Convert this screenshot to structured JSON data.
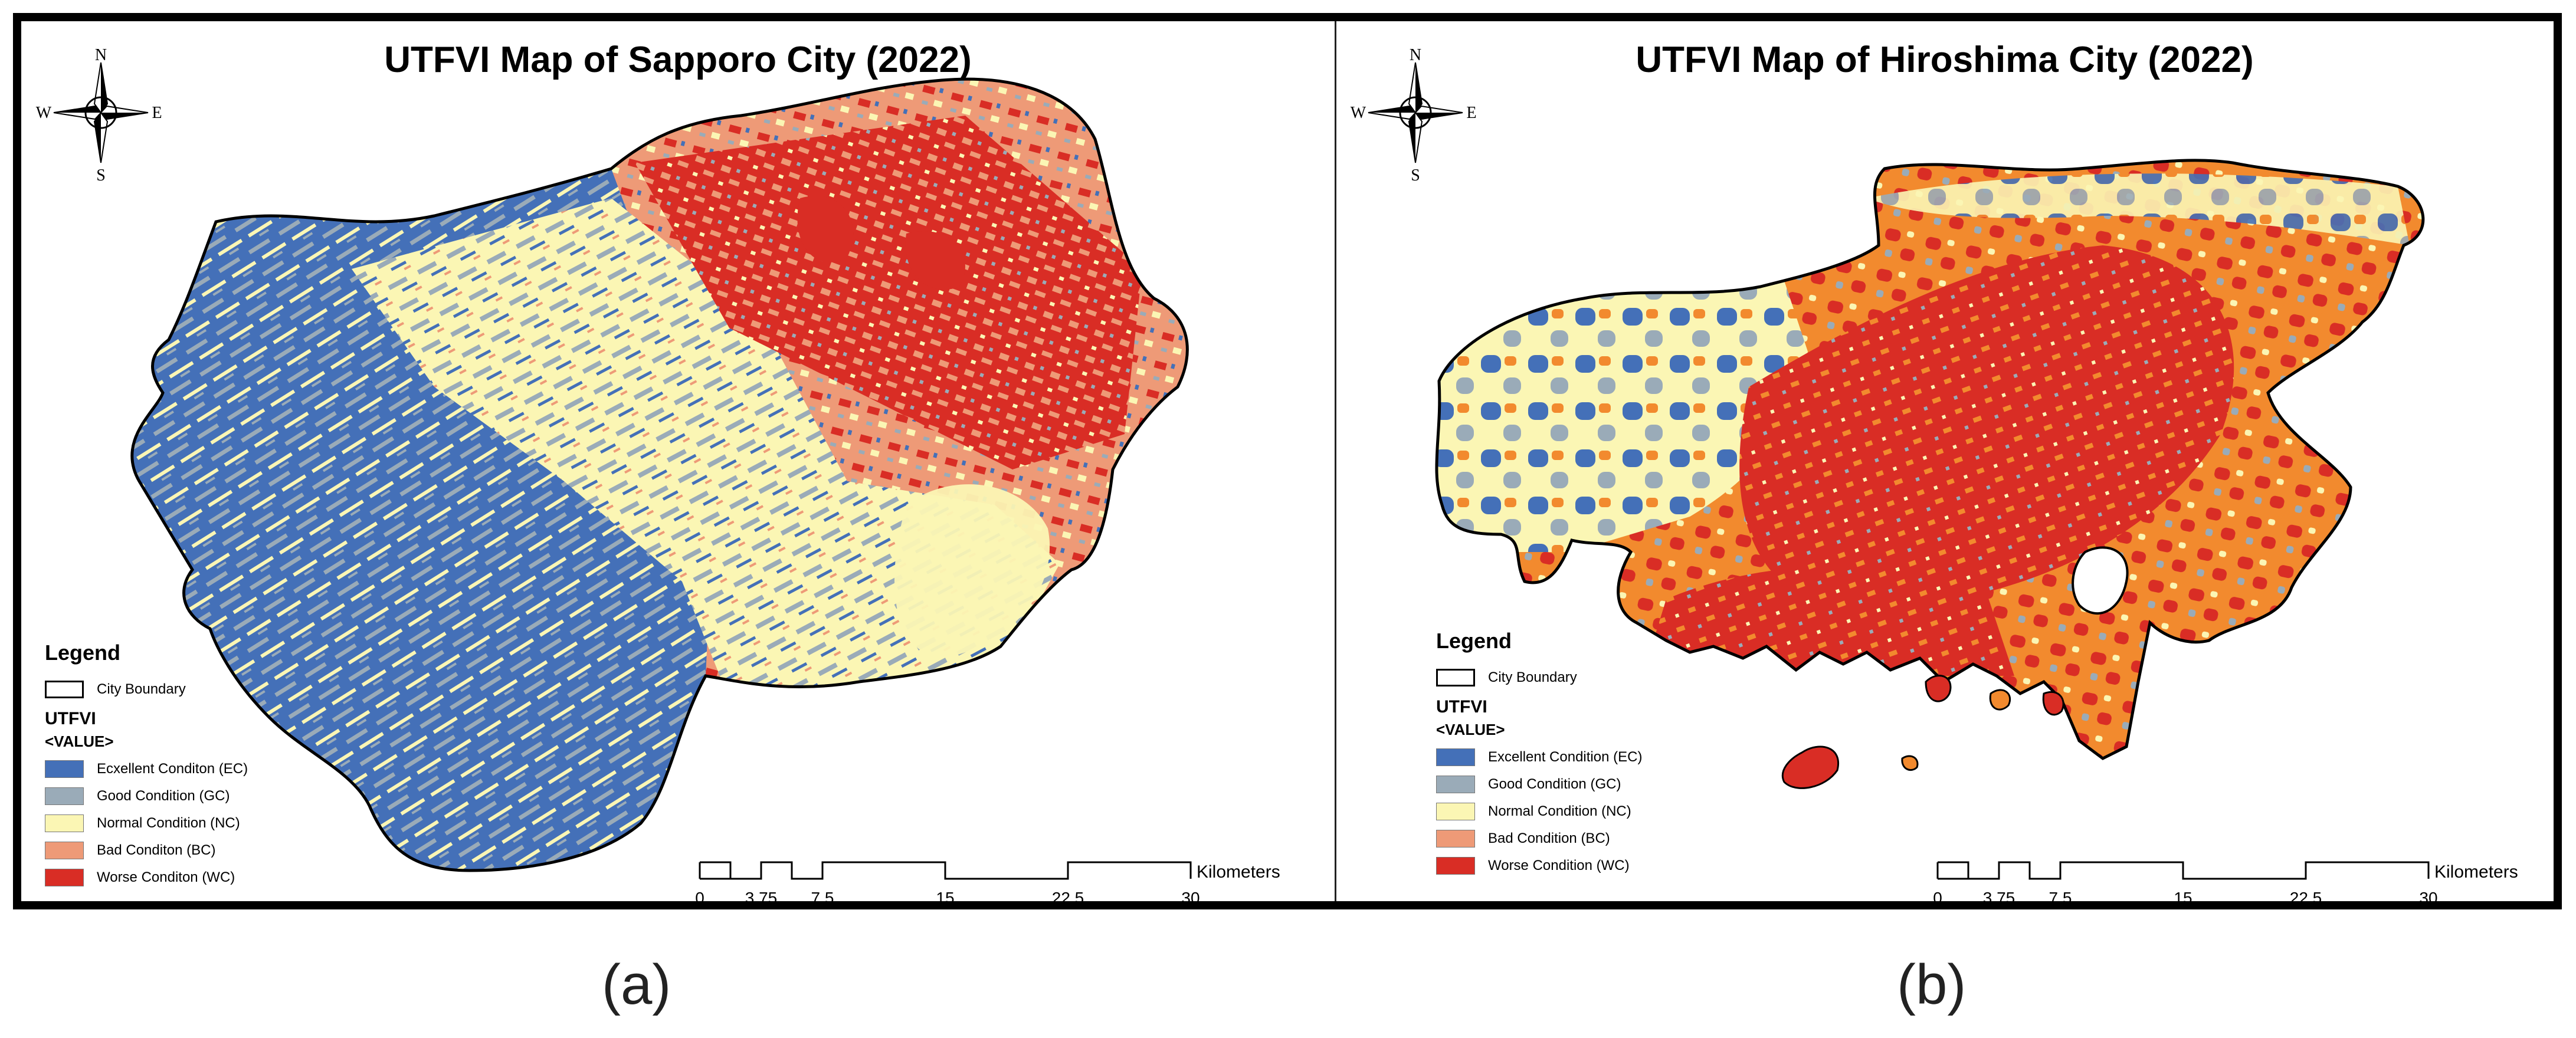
{
  "colors": {
    "ec": "#4470b8",
    "gc": "#9aabb8",
    "nc": "#fbf6b4",
    "bc": "#ee9a77",
    "wc": "#d92d25",
    "hiroshima_orange": "#f28a2e"
  },
  "panels": [
    {
      "title": "UTFVI Map of Sapporo City (2022)",
      "caption": "(a)",
      "compass": {
        "n": "N",
        "s": "S",
        "e": "E",
        "w": "W"
      },
      "legend": {
        "title": "Legend",
        "boundary_label": "City Boundary",
        "field": "UTFVI",
        "value_label": "<VALUE>",
        "classes": [
          {
            "label": "Ecxellent Conditon (EC)",
            "color": "#4470b8"
          },
          {
            "label": "Good Condition (GC)",
            "color": "#9aabb8"
          },
          {
            "label": "Normal Condition (NC)",
            "color": "#fbf6b4"
          },
          {
            "label": "Bad Conditon (BC)",
            "color": "#ee9a77"
          },
          {
            "label": "Worse Conditon (WC)",
            "color": "#d92d25"
          }
        ]
      },
      "scalebar": {
        "ticks": [
          "0",
          "3.75",
          "7.5",
          "15",
          "22.5",
          "30"
        ],
        "unit": "Kilometers"
      }
    },
    {
      "title": "UTFVI Map of Hiroshima City (2022)",
      "caption": "(b)",
      "compass": {
        "n": "N",
        "s": "S",
        "e": "E",
        "w": "W"
      },
      "legend": {
        "title": "Legend",
        "boundary_label": "City Boundary",
        "field": "UTFVI",
        "value_label": "<VALUE>",
        "classes": [
          {
            "label": "Excellent Condition (EC)",
            "color": "#4470b8"
          },
          {
            "label": "Good Condition (GC)",
            "color": "#9aabb8"
          },
          {
            "label": "Normal Condition (NC)",
            "color": "#fbf6b4"
          },
          {
            "label": "Bad Condition (BC)",
            "color": "#ee9a77"
          },
          {
            "label": "Worse Condition (WC)",
            "color": "#d92d25"
          }
        ]
      },
      "scalebar": {
        "ticks": [
          "0",
          "3.75",
          "7.5",
          "15",
          "22.5",
          "30"
        ],
        "unit": "Kilometers"
      }
    }
  ]
}
